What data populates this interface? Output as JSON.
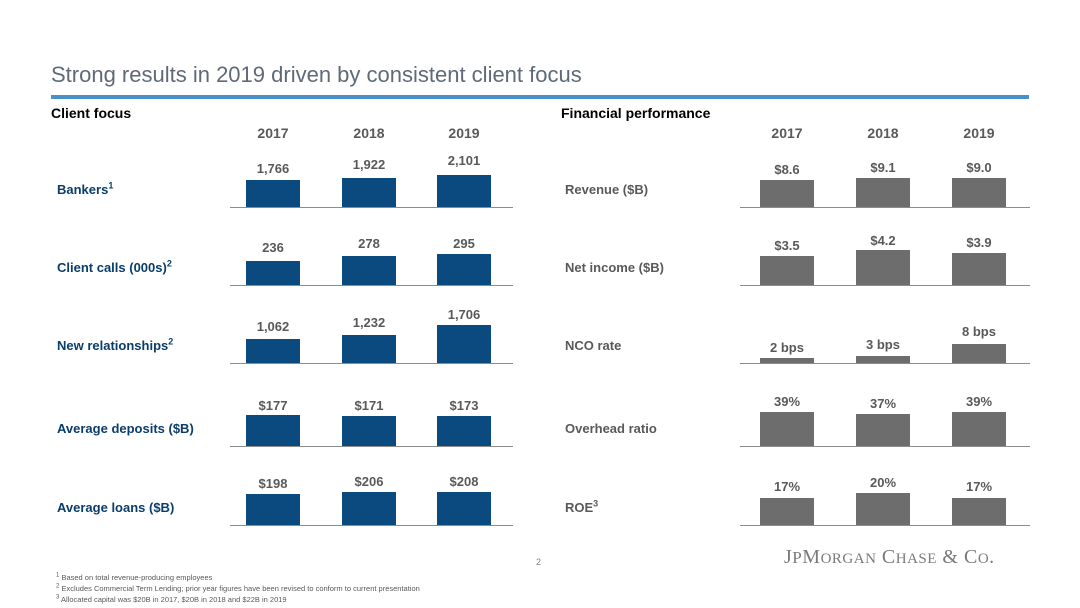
{
  "title": "Strong results in 2019 driven by consistent client focus",
  "left": {
    "heading": "Client focus",
    "years": [
      "2017",
      "2018",
      "2019"
    ],
    "rows": [
      {
        "label": "Bankers",
        "note": "1",
        "values": [
          "1,766",
          "1,922",
          "2,101"
        ]
      },
      {
        "label": "Client calls (000s)",
        "note": "2",
        "values": [
          "236",
          "278",
          "295"
        ]
      },
      {
        "label": "New relationships",
        "note": "2",
        "values": [
          "1,062",
          "1,232",
          "1,706"
        ]
      },
      {
        "label": "Average deposits ($B)",
        "note": "",
        "values": [
          "$177",
          "$171",
          "$173"
        ]
      },
      {
        "label": "Average loans ($B)",
        "note": "",
        "values": [
          "$198",
          "$206",
          "$208"
        ]
      }
    ]
  },
  "right": {
    "heading": "Financial performance",
    "years": [
      "2017",
      "2018",
      "2019"
    ],
    "rows": [
      {
        "label": "Revenue ($B)",
        "note": "",
        "values": [
          "$8.6",
          "$9.1",
          "$9.0"
        ]
      },
      {
        "label": "Net income ($B)",
        "note": "",
        "values": [
          "$3.5",
          "$4.2",
          "$3.9"
        ]
      },
      {
        "label": "NCO rate",
        "note": "",
        "values": [
          "2 bps",
          "3 bps",
          "8 bps"
        ]
      },
      {
        "label": "Overhead ratio",
        "note": "",
        "values": [
          "39%",
          "37%",
          "39%"
        ]
      },
      {
        "label": "ROE",
        "note": "3",
        "values": [
          "17%",
          "20%",
          "17%"
        ]
      }
    ]
  },
  "page_number": "2",
  "logo": "JPMORGAN CHASE & CO.",
  "footnotes": [
    {
      "mark": "1",
      "text": "Based on total revenue-producing employees"
    },
    {
      "mark": "2",
      "text": "Excludes Commercial Term Lending; prior year figures have been revised to conform to current presentation"
    },
    {
      "mark": "3",
      "text": "Allocated capital was $20B in 2017, $20B in 2018 and $22B in 2019"
    }
  ],
  "colors": {
    "accent_rule": "#4a90c8",
    "left_bars": "#0a4a7f",
    "right_bars": "#6d6d6d"
  }
}
